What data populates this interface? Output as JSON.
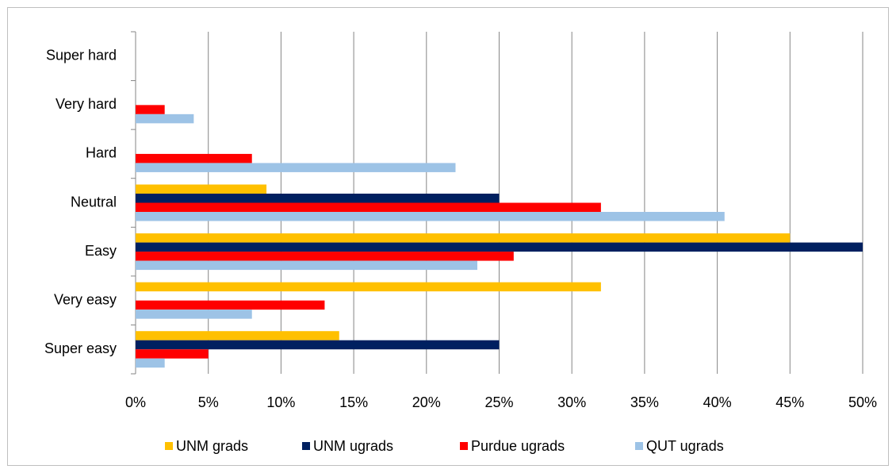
{
  "chart_data": {
    "type": "bar",
    "orientation": "horizontal",
    "categories": [
      "Super easy",
      "Very easy",
      "Easy",
      "Neutral",
      "Hard",
      "Very hard",
      "Super hard"
    ],
    "series": [
      {
        "name": "UNM grads",
        "color": "#ffc000",
        "values": [
          14,
          32,
          45,
          9,
          0,
          0,
          0
        ]
      },
      {
        "name": "UNM ugrads",
        "color": "#002060",
        "values": [
          25,
          0,
          50,
          25,
          0,
          0,
          0
        ]
      },
      {
        "name": "Purdue ugrads",
        "color": "#ff0000",
        "values": [
          5,
          13,
          26,
          32,
          8,
          2,
          0
        ]
      },
      {
        "name": "QUT ugrads",
        "color": "#9dc3e6",
        "values": [
          2,
          8,
          23.5,
          40.5,
          22,
          4,
          0
        ]
      }
    ],
    "xlim": [
      0,
      50
    ],
    "xticks": [
      {
        "value": 0,
        "label": "0%"
      },
      {
        "value": 5,
        "label": "5%"
      },
      {
        "value": 10,
        "label": "10%"
      },
      {
        "value": 15,
        "label": "15%"
      },
      {
        "value": 20,
        "label": "20%"
      },
      {
        "value": 25,
        "label": "25%"
      },
      {
        "value": 30,
        "label": "30%"
      },
      {
        "value": 35,
        "label": "35%"
      },
      {
        "value": 40,
        "label": "40%"
      },
      {
        "value": 45,
        "label": "45%"
      },
      {
        "value": 50,
        "label": "50%"
      }
    ],
    "grid": true,
    "legend": "bottom"
  }
}
